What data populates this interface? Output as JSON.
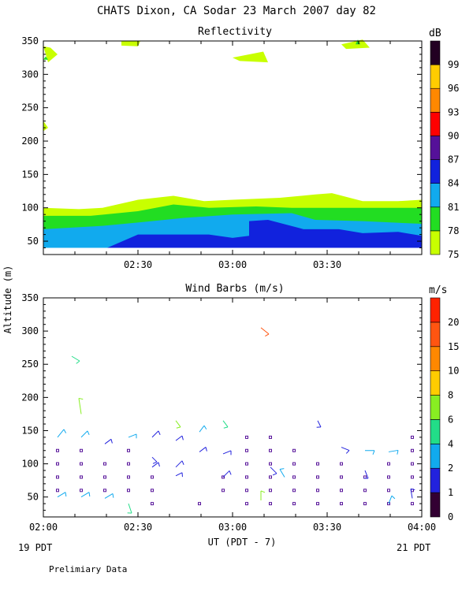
{
  "title": "CHATS Dixon, CA  Sodar  23 March 2007  day  82",
  "footer_left": "19 PDT",
  "footer_right": "21 PDT",
  "footnote": "Prelimiary Data",
  "colors": {
    "dB": [
      "#c8ff00",
      "#22dd22",
      "#11aaee",
      "#1122dd",
      "#551199",
      "#ff0000",
      "#ff8800",
      "#ffcc00",
      "#220022"
    ],
    "ms": [
      "#330033",
      "#2222dd",
      "#11aaee",
      "#22dd88",
      "#88ee22",
      "#ffcc00",
      "#ff8800",
      "#ff5511",
      "#ff2200"
    ]
  },
  "chart_data": [
    {
      "type": "heatmap",
      "title": "Reflectivity",
      "ylabel": "",
      "xlim": [
        "02:00",
        "04:00"
      ],
      "ylim": [
        30,
        350
      ],
      "x_ticks": [
        "02:00",
        "02:30",
        "03:00",
        "03:30",
        "04:00"
      ],
      "y_ticks": [
        50,
        100,
        150,
        200,
        250,
        300,
        350
      ],
      "colorbar": {
        "unit": "dB",
        "levels": [
          75,
          78,
          81,
          84,
          87,
          90,
          93,
          96,
          99
        ]
      },
      "bands": [
        {
          "level": 75,
          "top": [
            [
              0,
              100
            ],
            [
              15,
              98
            ],
            [
              25,
              100
            ],
            [
              40,
              112
            ],
            [
              55,
              118
            ],
            [
              68,
              110
            ],
            [
              80,
              112
            ],
            [
              100,
              115
            ],
            [
              115,
              120
            ],
            [
              122,
              122
            ],
            [
              135,
              110
            ],
            [
              150,
              110
            ],
            [
              160,
              112
            ]
          ]
        },
        {
          "level": 78,
          "top": [
            [
              0,
              88
            ],
            [
              20,
              88
            ],
            [
              40,
              95
            ],
            [
              55,
              105
            ],
            [
              70,
              100
            ],
            [
              90,
              102
            ],
            [
              105,
              100
            ],
            [
              120,
              100
            ],
            [
              160,
              100
            ]
          ]
        },
        {
          "level": 81,
          "top": [
            [
              0,
              68
            ],
            [
              25,
              73
            ],
            [
              40,
              78
            ],
            [
              60,
              85
            ],
            [
              80,
              90
            ],
            [
              105,
              92
            ],
            [
              115,
              82
            ],
            [
              135,
              80
            ],
            [
              160,
              76
            ]
          ]
        },
        {
          "level": 84,
          "top": [
            [
              27,
              40
            ],
            [
              40,
              60
            ],
            [
              70,
              60
            ],
            [
              80,
              55
            ],
            [
              87,
              58
            ],
            [
              87,
              80
            ],
            [
              95,
              82
            ],
            [
              110,
              68
            ],
            [
              125,
              68
            ],
            [
              135,
              62
            ],
            [
              150,
              64
            ],
            [
              160,
              58
            ]
          ]
        }
      ],
      "patches": [
        {
          "level": 75,
          "points": [
            [
              0,
              342
            ],
            [
              2,
              318
            ],
            [
              6,
              330
            ],
            [
              3,
              340
            ]
          ]
        },
        {
          "level": 75,
          "points": [
            [
              0,
              230
            ],
            [
              2,
              220
            ],
            [
              0,
              215
            ]
          ]
        },
        {
          "level": 75,
          "points": [
            [
              33,
              350
            ],
            [
              41,
              350
            ],
            [
              40,
              342
            ],
            [
              33,
              343
            ]
          ]
        },
        {
          "level": 75,
          "points": [
            [
              80,
              325
            ],
            [
              93,
              334
            ],
            [
              95,
              318
            ],
            [
              83,
              320
            ]
          ]
        },
        {
          "level": 75,
          "points": [
            [
              126,
              345
            ],
            [
              135,
              352
            ],
            [
              138,
              340
            ],
            [
              128,
              338
            ]
          ]
        },
        {
          "level": 78,
          "points": [
            [
              132,
              345
            ],
            [
              133,
              352
            ],
            [
              134,
              345
            ]
          ]
        },
        {
          "level": 78,
          "points": [
            [
              0,
              322
            ],
            [
              1,
              327
            ],
            [
              2,
              322
            ]
          ]
        }
      ]
    },
    {
      "type": "scatter",
      "title": "Wind Barbs (m/s)",
      "ylabel": "Altitude (m)",
      "xlabel": "UT  (PDT - 7)",
      "xlim": [
        "02:00",
        "04:00"
      ],
      "ylim": [
        20,
        350
      ],
      "x_ticks": [
        "02:00",
        "02:30",
        "03:00",
        "03:30",
        "04:00"
      ],
      "y_ticks": [
        50,
        100,
        150,
        200,
        250,
        300,
        350
      ],
      "colorbar": {
        "unit": "m/s",
        "levels": [
          0,
          1,
          2,
          4,
          6,
          8,
          10,
          15,
          20
        ]
      },
      "calm_points": [
        [
          6,
          120
        ],
        [
          6,
          100
        ],
        [
          6,
          80
        ],
        [
          6,
          60
        ],
        [
          16,
          120
        ],
        [
          16,
          100
        ],
        [
          16,
          80
        ],
        [
          16,
          60
        ],
        [
          26,
          100
        ],
        [
          26,
          80
        ],
        [
          26,
          60
        ],
        [
          36,
          120
        ],
        [
          36,
          100
        ],
        [
          36,
          80
        ],
        [
          36,
          60
        ],
        [
          46,
          80
        ],
        [
          46,
          60
        ],
        [
          46,
          40
        ],
        [
          66,
          40
        ],
        [
          76,
          80
        ],
        [
          76,
          60
        ],
        [
          86,
          140
        ],
        [
          86,
          120
        ],
        [
          86,
          100
        ],
        [
          86,
          80
        ],
        [
          86,
          60
        ],
        [
          86,
          40
        ],
        [
          96,
          140
        ],
        [
          96,
          120
        ],
        [
          96,
          100
        ],
        [
          96,
          80
        ],
        [
          96,
          60
        ],
        [
          96,
          40
        ],
        [
          106,
          120
        ],
        [
          106,
          100
        ],
        [
          106,
          80
        ],
        [
          106,
          60
        ],
        [
          106,
          40
        ],
        [
          116,
          100
        ],
        [
          116,
          80
        ],
        [
          116,
          60
        ],
        [
          116,
          40
        ],
        [
          126,
          100
        ],
        [
          126,
          80
        ],
        [
          126,
          60
        ],
        [
          126,
          40
        ],
        [
          136,
          80
        ],
        [
          136,
          60
        ],
        [
          136,
          40
        ],
        [
          146,
          100
        ],
        [
          146,
          80
        ],
        [
          146,
          60
        ],
        [
          146,
          40
        ],
        [
          156,
          140
        ],
        [
          156,
          120
        ],
        [
          156,
          100
        ],
        [
          156,
          80
        ],
        [
          156,
          60
        ],
        [
          156,
          40
        ]
      ],
      "barbs": [
        {
          "t": 12,
          "z": 262,
          "dx": 10,
          "dy": 6,
          "color": "#22dd88"
        },
        {
          "t": 16,
          "z": 175,
          "dx": -3,
          "dy": -20,
          "color": "#88ee22"
        },
        {
          "t": 6,
          "z": 140,
          "dx": 8,
          "dy": -10,
          "color": "#11aaee"
        },
        {
          "t": 16,
          "z": 140,
          "dx": 8,
          "dy": -8,
          "color": "#11aaee"
        },
        {
          "t": 26,
          "z": 130,
          "dx": 8,
          "dy": -6,
          "color": "#2222dd"
        },
        {
          "t": 36,
          "z": 140,
          "dx": 10,
          "dy": -4,
          "color": "#11aaee"
        },
        {
          "t": 46,
          "z": 140,
          "dx": 8,
          "dy": -8,
          "color": "#2222dd"
        },
        {
          "t": 56,
          "z": 165,
          "dx": 6,
          "dy": 8,
          "color": "#88ee22"
        },
        {
          "t": 56,
          "z": 135,
          "dx": 8,
          "dy": -6,
          "color": "#2222dd"
        },
        {
          "t": 66,
          "z": 148,
          "dx": 6,
          "dy": -8,
          "color": "#11aaee"
        },
        {
          "t": 76,
          "z": 165,
          "dx": 6,
          "dy": 8,
          "color": "#22dd88"
        },
        {
          "t": 116,
          "z": 165,
          "dx": 4,
          "dy": 8,
          "color": "#2222dd"
        },
        {
          "t": 126,
          "z": 125,
          "dx": 10,
          "dy": 4,
          "color": "#2222dd"
        },
        {
          "t": 136,
          "z": 120,
          "dx": 12,
          "dy": 0,
          "color": "#11aaee"
        },
        {
          "t": 146,
          "z": 118,
          "dx": 12,
          "dy": -2,
          "color": "#11aaee"
        },
        {
          "t": 46,
          "z": 110,
          "dx": 6,
          "dy": 6,
          "color": "#2222dd"
        },
        {
          "t": 66,
          "z": 118,
          "dx": 8,
          "dy": -6,
          "color": "#2222dd"
        },
        {
          "t": 76,
          "z": 115,
          "dx": 10,
          "dy": -4,
          "color": "#2222dd"
        },
        {
          "t": 56,
          "z": 95,
          "dx": 8,
          "dy": -8,
          "color": "#2222dd"
        },
        {
          "t": 46,
          "z": 95,
          "dx": 8,
          "dy": -6,
          "color": "#2222dd"
        },
        {
          "t": 96,
          "z": 95,
          "dx": 8,
          "dy": 8,
          "color": "#2222dd"
        },
        {
          "t": 102,
          "z": 80,
          "dx": -6,
          "dy": -10,
          "color": "#11aaee"
        },
        {
          "t": 76,
          "z": 80,
          "dx": 8,
          "dy": -8,
          "color": "#2222dd"
        },
        {
          "t": 56,
          "z": 82,
          "dx": 8,
          "dy": -4,
          "color": "#2222dd"
        },
        {
          "t": 136,
          "z": 90,
          "dx": 4,
          "dy": 10,
          "color": "#2222dd"
        },
        {
          "t": 6,
          "z": 50,
          "dx": 10,
          "dy": -6,
          "color": "#11aaee"
        },
        {
          "t": 16,
          "z": 50,
          "dx": 10,
          "dy": -6,
          "color": "#11aaee"
        },
        {
          "t": 26,
          "z": 48,
          "dx": 10,
          "dy": -6,
          "color": "#11aaee"
        },
        {
          "t": 36,
          "z": 40,
          "dx": 4,
          "dy": 12,
          "color": "#22dd88"
        },
        {
          "t": 92,
          "z": 45,
          "dx": 0,
          "dy": -12,
          "color": "#88ee22"
        },
        {
          "t": 146,
          "z": 40,
          "dx": 4,
          "dy": -10,
          "color": "#11aaee"
        },
        {
          "t": 156,
          "z": 48,
          "dx": -2,
          "dy": -12,
          "color": "#2222dd"
        },
        {
          "t": 92,
          "z": 305,
          "dx": 10,
          "dy": 8,
          "color": "#ff5511"
        }
      ]
    }
  ]
}
